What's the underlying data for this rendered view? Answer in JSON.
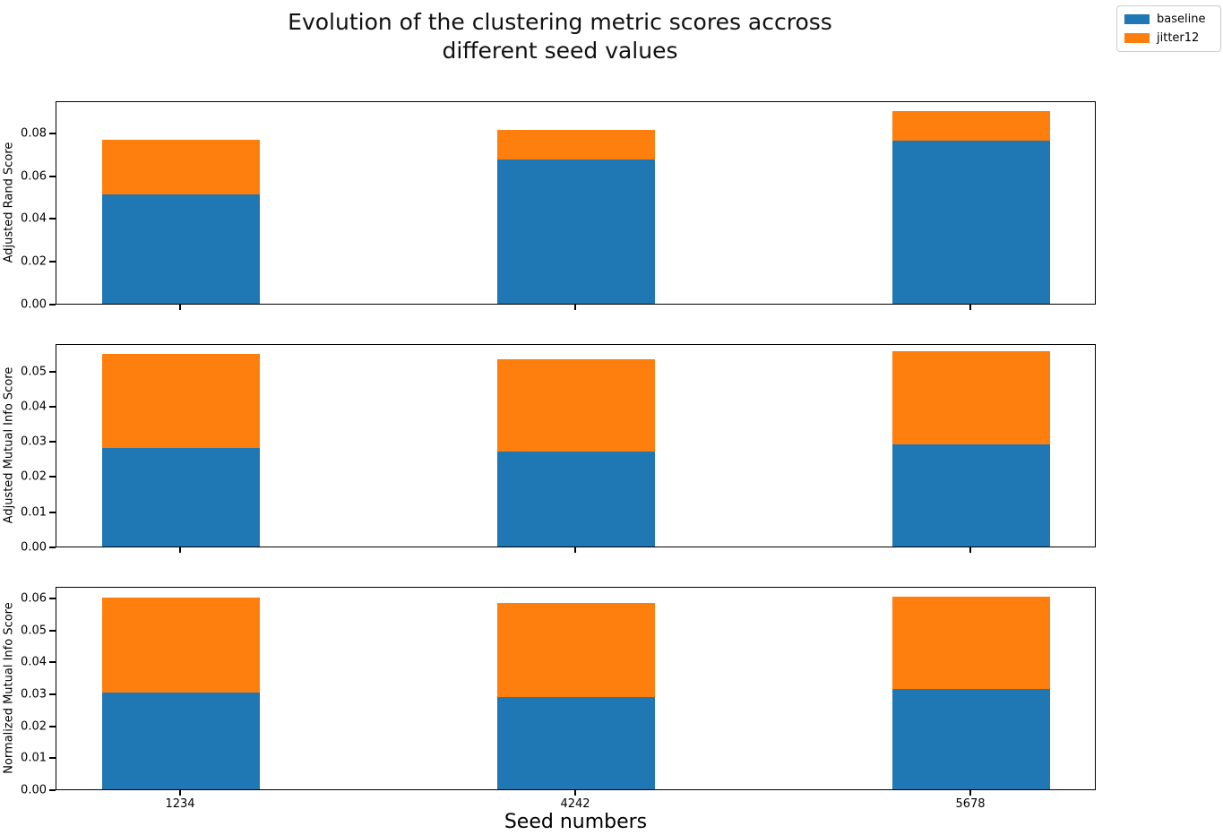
{
  "figure": {
    "background": "#ffffff",
    "title_lines": [
      "Evolution of the clustering metric scores accross",
      "different seed values"
    ]
  },
  "legend": {
    "position": "upper-right",
    "entries": [
      {
        "label": "baseline",
        "color": "#1f77b4"
      },
      {
        "label": "jitter12",
        "color": "#ff7f0e"
      }
    ]
  },
  "chart_data": {
    "type": "bar",
    "stacked": true,
    "title": "Evolution of the clustering metric scores accross different seed values",
    "xlabel": "Seed numbers",
    "categories": [
      "1234",
      "4242",
      "5678"
    ],
    "legend_entries": [
      "baseline",
      "jitter12"
    ],
    "series_colors": {
      "baseline": "#1f77b4",
      "jitter12": "#ff7f0e"
    },
    "grid": false,
    "panels": [
      {
        "ylabel": "Adjusted Rand Score",
        "ylim": [
          0,
          0.095
        ],
        "yticks": [
          0.0,
          0.02,
          0.04,
          0.06,
          0.08
        ],
        "ytick_labels": [
          "0.00",
          "0.02",
          "0.04",
          "0.06",
          "0.08"
        ],
        "series": [
          {
            "name": "baseline",
            "color": "#1f77b4",
            "values": [
              0.051,
              0.0672,
              0.0762
            ]
          },
          {
            "name": "jitter12",
            "color": "#ff7f0e",
            "values": [
              0.0255,
              0.0139,
              0.014
            ]
          }
        ],
        "stack_totals": [
          0.0765,
          0.0811,
          0.0902
        ]
      },
      {
        "ylabel": "Adjusted Mutual Info Score",
        "ylim": [
          0,
          0.0578
        ],
        "yticks": [
          0.0,
          0.01,
          0.02,
          0.03,
          0.04,
          0.05
        ],
        "ytick_labels": [
          "0.00",
          "0.01",
          "0.02",
          "0.03",
          "0.04",
          "0.05"
        ],
        "series": [
          {
            "name": "baseline",
            "color": "#1f77b4",
            "values": [
              0.028,
              0.0269,
              0.0291
            ]
          },
          {
            "name": "jitter12",
            "color": "#ff7f0e",
            "values": [
              0.0268,
              0.0264,
              0.0263
            ]
          }
        ],
        "stack_totals": [
          0.0548,
          0.0533,
          0.0554
        ]
      },
      {
        "ylabel": "Normalized Mutual Info Score",
        "ylim": [
          0,
          0.0637
        ],
        "yticks": [
          0.0,
          0.01,
          0.02,
          0.03,
          0.04,
          0.05,
          0.06
        ],
        "ytick_labels": [
          "0.00",
          "0.01",
          "0.02",
          "0.03",
          "0.04",
          "0.05",
          "0.06"
        ],
        "series": [
          {
            "name": "baseline",
            "color": "#1f77b4",
            "values": [
              0.0302,
              0.0289,
              0.0315
            ]
          },
          {
            "name": "jitter12",
            "color": "#ff7f0e",
            "values": [
              0.0299,
              0.0294,
              0.0287
            ]
          }
        ],
        "stack_totals": [
          0.0601,
          0.0583,
          0.0602
        ]
      }
    ]
  }
}
